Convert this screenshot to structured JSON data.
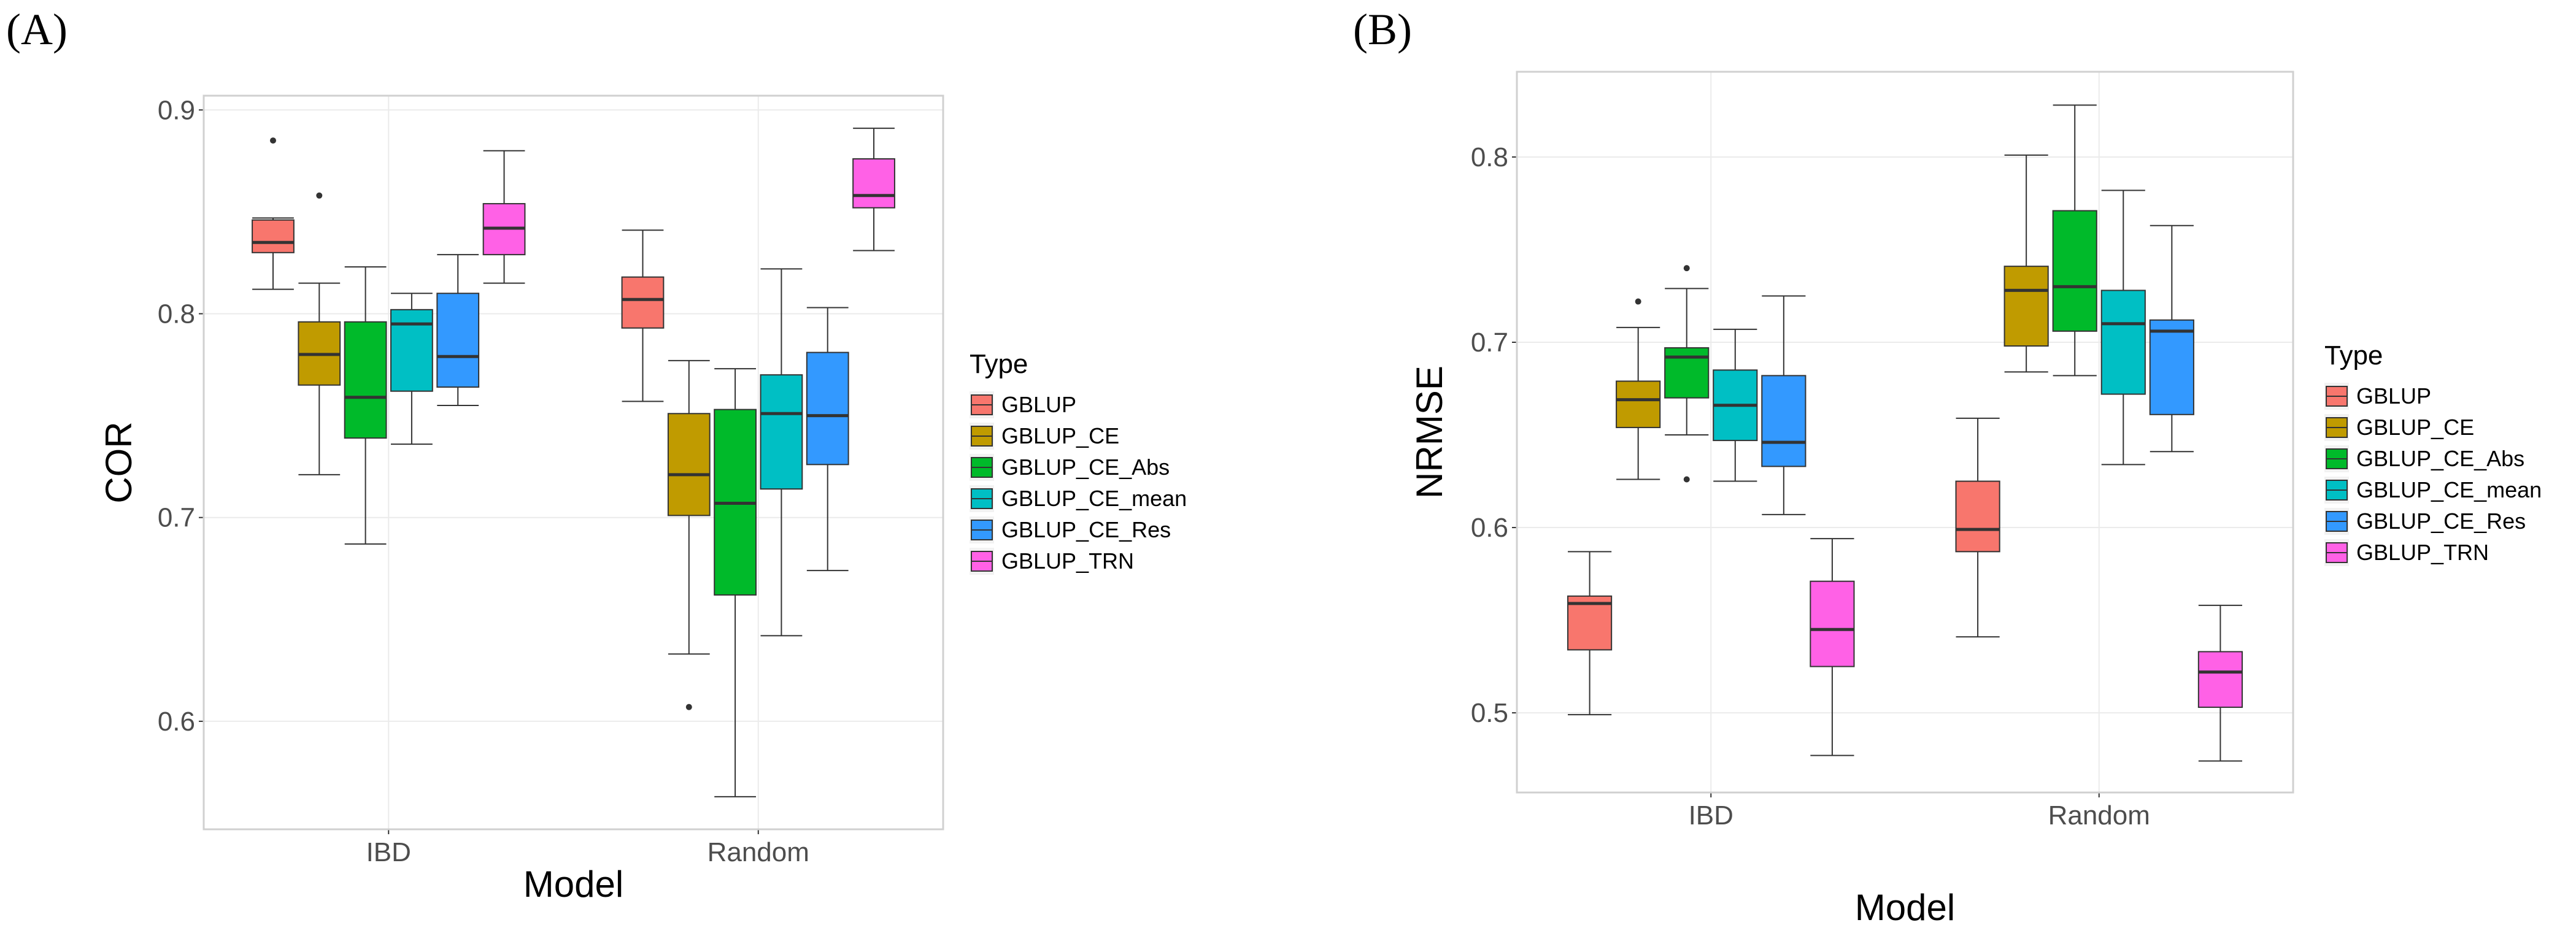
{
  "panels_labels": [
    "(A)",
    "(B)"
  ],
  "colors": {
    "GBLUP": "#F8766D",
    "GBLUP_CE": "#C09B00",
    "GBLUP_CE_Abs": "#00BA2A",
    "GBLUP_CE_mean": "#00BFC4",
    "GBLUP_CE_Res": "#3399FF",
    "GBLUP_TRN": "#FF61E6",
    "grid": "#EBEBEB",
    "box_line": "#333333"
  },
  "chart_data": [
    {
      "type": "boxplot",
      "panel": "(A)",
      "xlabel": "Model",
      "ylabel": "COR",
      "ylim": [
        0.547,
        0.907
      ],
      "yticks": [
        0.6,
        0.7,
        0.8,
        0.9
      ],
      "ytick_labels": [
        "0.6",
        "0.7",
        "0.8",
        "0.9"
      ],
      "categories": [
        "IBD",
        "Random"
      ],
      "legend": {
        "title": "Type",
        "placement": "right",
        "entries": [
          "GBLUP",
          "GBLUP_CE",
          "GBLUP_CE_Abs",
          "GBLUP_CE_mean",
          "GBLUP_CE_Res",
          "GBLUP_TRN"
        ]
      },
      "grid": true,
      "series": [
        {
          "name": "GBLUP",
          "boxes": [
            {
              "min": 0.812,
              "q1": 0.83,
              "median": 0.835,
              "q3": 0.846,
              "max": 0.847,
              "outliers": [
                0.885
              ]
            },
            {
              "min": 0.757,
              "q1": 0.793,
              "median": 0.807,
              "q3": 0.818,
              "max": 0.841,
              "outliers": []
            }
          ]
        },
        {
          "name": "GBLUP_CE",
          "boxes": [
            {
              "min": 0.721,
              "q1": 0.765,
              "median": 0.78,
              "q3": 0.796,
              "max": 0.815,
              "outliers": [
                0.858
              ]
            },
            {
              "min": 0.633,
              "q1": 0.701,
              "median": 0.721,
              "q3": 0.751,
              "max": 0.777,
              "outliers": [
                0.607
              ]
            }
          ]
        },
        {
          "name": "GBLUP_CE_Abs",
          "boxes": [
            {
              "min": 0.687,
              "q1": 0.739,
              "median": 0.759,
              "q3": 0.796,
              "max": 0.823,
              "outliers": []
            },
            {
              "min": 0.563,
              "q1": 0.662,
              "median": 0.707,
              "q3": 0.753,
              "max": 0.773,
              "outliers": []
            }
          ]
        },
        {
          "name": "GBLUP_CE_mean",
          "boxes": [
            {
              "min": 0.736,
              "q1": 0.762,
              "median": 0.795,
              "q3": 0.802,
              "max": 0.81,
              "outliers": []
            },
            {
              "min": 0.642,
              "q1": 0.714,
              "median": 0.751,
              "q3": 0.77,
              "max": 0.822,
              "outliers": []
            }
          ]
        },
        {
          "name": "GBLUP_CE_Res",
          "boxes": [
            {
              "min": 0.755,
              "q1": 0.764,
              "median": 0.779,
              "q3": 0.81,
              "max": 0.829,
              "outliers": []
            },
            {
              "min": 0.674,
              "q1": 0.726,
              "median": 0.75,
              "q3": 0.781,
              "max": 0.803,
              "outliers": []
            }
          ]
        },
        {
          "name": "GBLUP_TRN",
          "boxes": [
            {
              "min": 0.815,
              "q1": 0.829,
              "median": 0.842,
              "q3": 0.854,
              "max": 0.88,
              "outliers": []
            },
            {
              "min": 0.831,
              "q1": 0.852,
              "median": 0.858,
              "q3": 0.876,
              "max": 0.891,
              "outliers": []
            }
          ]
        }
      ]
    },
    {
      "type": "boxplot",
      "panel": "(B)",
      "xlabel": "Model",
      "ylabel": "NRMSE",
      "ylim": [
        0.457,
        0.846
      ],
      "yticks": [
        0.5,
        0.6,
        0.7,
        0.8
      ],
      "ytick_labels": [
        "0.5",
        "0.6",
        "0.7",
        "0.8"
      ],
      "categories": [
        "IBD",
        "Random"
      ],
      "legend": {
        "title": "Type",
        "placement": "right",
        "entries": [
          "GBLUP",
          "GBLUP_CE",
          "GBLUP_CE_Abs",
          "GBLUP_CE_mean",
          "GBLUP_CE_Res",
          "GBLUP_TRN"
        ]
      },
      "grid": true,
      "series": [
        {
          "name": "GBLUP",
          "boxes": [
            {
              "min": 0.499,
              "q1": 0.534,
              "median": 0.559,
              "q3": 0.563,
              "max": 0.587,
              "outliers": []
            },
            {
              "min": 0.541,
              "q1": 0.587,
              "median": 0.599,
              "q3": 0.625,
              "max": 0.659,
              "outliers": []
            }
          ]
        },
        {
          "name": "GBLUP_CE",
          "boxes": [
            {
              "min": 0.626,
              "q1": 0.654,
              "median": 0.669,
              "q3": 0.679,
              "max": 0.708,
              "outliers": [
                0.722
              ]
            },
            {
              "min": 0.684,
              "q1": 0.698,
              "median": 0.728,
              "q3": 0.741,
              "max": 0.801,
              "outliers": []
            }
          ]
        },
        {
          "name": "GBLUP_CE_Abs",
          "boxes": [
            {
              "min": 0.65,
              "q1": 0.67,
              "median": 0.692,
              "q3": 0.697,
              "max": 0.729,
              "outliers": [
                0.74,
                0.626
              ]
            },
            {
              "min": 0.682,
              "q1": 0.706,
              "median": 0.73,
              "q3": 0.771,
              "max": 0.828,
              "outliers": []
            }
          ]
        },
        {
          "name": "GBLUP_CE_mean",
          "boxes": [
            {
              "min": 0.625,
              "q1": 0.647,
              "median": 0.666,
              "q3": 0.685,
              "max": 0.707,
              "outliers": []
            },
            {
              "min": 0.634,
              "q1": 0.672,
              "median": 0.71,
              "q3": 0.728,
              "max": 0.782,
              "outliers": []
            }
          ]
        },
        {
          "name": "GBLUP_CE_Res",
          "boxes": [
            {
              "min": 0.607,
              "q1": 0.633,
              "median": 0.646,
              "q3": 0.682,
              "max": 0.725,
              "outliers": []
            },
            {
              "min": 0.641,
              "q1": 0.661,
              "median": 0.706,
              "q3": 0.712,
              "max": 0.763,
              "outliers": []
            }
          ]
        },
        {
          "name": "GBLUP_TRN",
          "boxes": [
            {
              "min": 0.477,
              "q1": 0.525,
              "median": 0.545,
              "q3": 0.571,
              "max": 0.594,
              "outliers": []
            },
            {
              "min": 0.474,
              "q1": 0.503,
              "median": 0.522,
              "q3": 0.533,
              "max": 0.558,
              "outliers": []
            }
          ]
        }
      ]
    }
  ]
}
